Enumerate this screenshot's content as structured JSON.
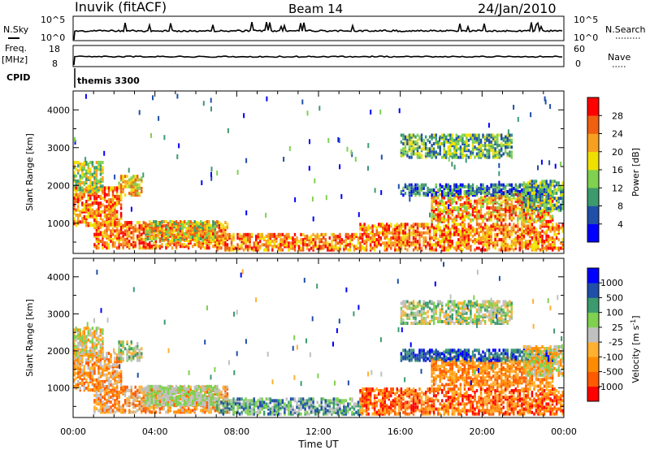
{
  "header": {
    "station": "Inuvik (fitACF)",
    "beam": "Beam 14",
    "date": "24/Jan/2010"
  },
  "strip_panels": {
    "nsky_label": "N.Sky",
    "nsky_ticks": [
      "10^5",
      "10^0"
    ],
    "nsearch_label": "N.Search",
    "nsearch_ticks": [
      "10^5",
      "10^0"
    ],
    "freq_label": "Freq.",
    "freq_unit": "[MHz]",
    "freq_ticks": [
      "18",
      "8"
    ],
    "nave_label": "Nave",
    "nave_ticks": [
      "60",
      "0"
    ],
    "cpid_label": "CPID",
    "cpid_value": "themis 3300"
  },
  "colors": {
    "power_scale": [
      "#0000ff",
      "#1f4fa8",
      "#3c9a6e",
      "#7fd14f",
      "#f0e000",
      "#f7a020",
      "#f06010",
      "#ff0000"
    ],
    "velocity_scale": [
      "#ff0000",
      "#ff5a00",
      "#ff8c00",
      "#ffb030",
      "#c0c0c0",
      "#7fd14f",
      "#3c9a6e",
      "#1f4fa8",
      "#0000ff"
    ]
  },
  "chart_data": [
    {
      "type": "heatmap",
      "ylabel": "Slant Range [km]",
      "ylim": [
        200,
        4500
      ],
      "yticks": [
        "4000",
        "3000",
        "2000",
        "1000"
      ],
      "xlim": [
        "00:00",
        "24:00"
      ],
      "colorbar_label": "Power [dB]",
      "colorbar_ticks": [
        "28",
        "24",
        "20",
        "16",
        "12",
        "8",
        "4"
      ]
    },
    {
      "type": "heatmap",
      "xlabel": "Time UT",
      "ylabel": "Slant Range [km]",
      "ylim": [
        200,
        4500
      ],
      "yticks": [
        "4000",
        "3000",
        "2000",
        "1000"
      ],
      "xticks": [
        "00:00",
        "04:00",
        "08:00",
        "12:00",
        "16:00",
        "20:00",
        "00:00"
      ],
      "colorbar_label": "Velocity [m s-1]",
      "colorbar_ticks": [
        "1000",
        "500",
        "100",
        "25",
        "-25",
        "-100",
        "-500",
        "-1000"
      ]
    }
  ]
}
